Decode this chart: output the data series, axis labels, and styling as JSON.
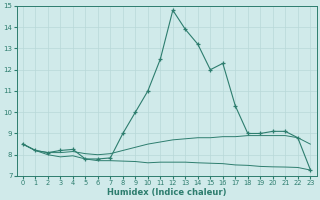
{
  "xlabel": "Humidex (Indice chaleur)",
  "x": [
    0,
    1,
    2,
    3,
    4,
    5,
    6,
    7,
    8,
    9,
    10,
    11,
    12,
    13,
    14,
    15,
    16,
    17,
    18,
    19,
    20,
    21,
    22,
    23
  ],
  "y_max": [
    8.5,
    8.2,
    8.1,
    8.2,
    8.25,
    7.8,
    7.8,
    7.85,
    9.0,
    10.0,
    11.0,
    12.5,
    14.8,
    13.9,
    13.2,
    12.0,
    12.3,
    10.3,
    9.0,
    9.0,
    9.1,
    9.1,
    8.8,
    7.3
  ],
  "y_mean": [
    8.5,
    8.2,
    8.1,
    8.1,
    8.15,
    8.05,
    8.0,
    8.05,
    8.2,
    8.35,
    8.5,
    8.6,
    8.7,
    8.75,
    8.8,
    8.8,
    8.85,
    8.85,
    8.9,
    8.9,
    8.9,
    8.9,
    8.8,
    8.5
  ],
  "y_min": [
    8.5,
    8.2,
    8.0,
    7.9,
    7.95,
    7.8,
    7.72,
    7.72,
    7.7,
    7.68,
    7.62,
    7.65,
    7.65,
    7.65,
    7.62,
    7.6,
    7.58,
    7.52,
    7.5,
    7.45,
    7.43,
    7.42,
    7.4,
    7.28
  ],
  "line_color": "#2d7d6e",
  "bg_color": "#d0eaea",
  "grid_color": "#b8d8d8",
  "ylim": [
    7,
    15
  ],
  "yticks": [
    7,
    8,
    9,
    10,
    11,
    12,
    13,
    14,
    15
  ],
  "xticks": [
    0,
    1,
    2,
    3,
    4,
    5,
    6,
    7,
    8,
    9,
    10,
    11,
    12,
    13,
    14,
    15,
    16,
    17,
    18,
    19,
    20,
    21,
    22,
    23
  ]
}
